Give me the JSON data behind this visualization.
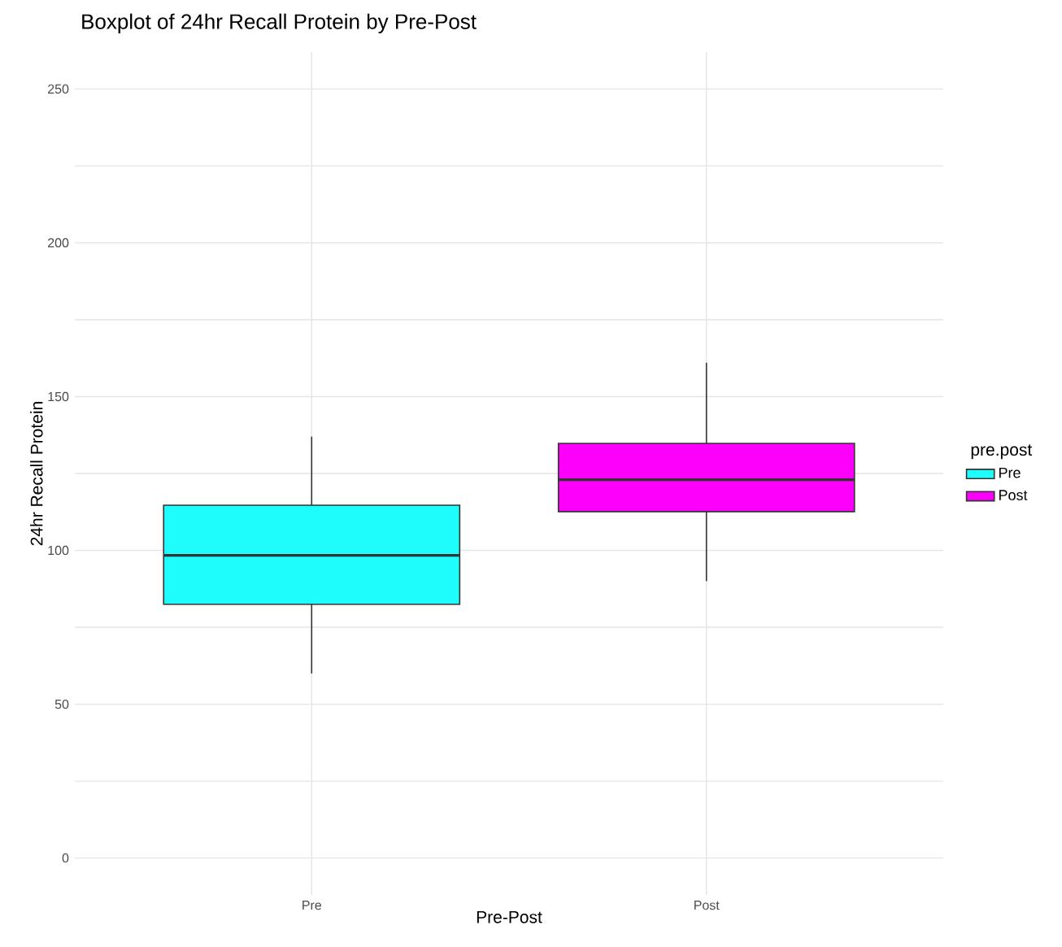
{
  "chart_data": {
    "type": "box",
    "title": "Boxplot of 24hr Recall Protein by Pre-Post",
    "xlabel": "Pre-Post",
    "ylabel": "24hr Recall Protein",
    "legend_title": "pre.post",
    "categories": [
      "Pre",
      "Post"
    ],
    "series": [
      {
        "name": "Pre",
        "color": "#1ffcfc",
        "boxes": [
          {
            "low": 60,
            "q1": 82.5,
            "median": 98.4,
            "q3": 114.7,
            "high": 137
          },
          null
        ]
      },
      {
        "name": "Post",
        "color": "#fc00fc",
        "boxes": [
          null,
          {
            "low": 90,
            "q1": 112.6,
            "median": 123,
            "q3": 134.8,
            "high": 161
          }
        ]
      }
    ],
    "ylim": [
      -12,
      262
    ],
    "yticks": [
      0,
      {
        "value": 25,
        "label": null
      },
      50,
      {
        "value": 75,
        "label": null
      },
      100,
      {
        "value": 125,
        "label": null
      },
      150,
      {
        "value": 175,
        "label": null
      },
      200,
      {
        "value": 225,
        "label": null
      },
      250
    ],
    "grid": true,
    "legend": "right"
  }
}
